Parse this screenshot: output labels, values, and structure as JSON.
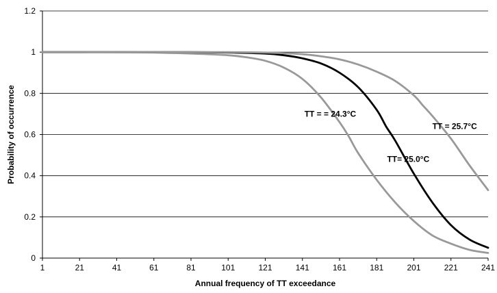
{
  "chart_data": {
    "type": "line",
    "xlabel": "Annual frequency of TT exceedance",
    "ylabel": "Probability of occurrence",
    "xlim": [
      1,
      241
    ],
    "ylim": [
      0,
      1.2
    ],
    "x_ticks": [
      1,
      21,
      41,
      61,
      81,
      101,
      121,
      141,
      161,
      181,
      201,
      221,
      241
    ],
    "y_ticks": [
      0,
      0.2,
      0.4,
      0.6,
      0.8,
      1,
      1.2
    ],
    "y_tick_labels": [
      "0",
      "0.2",
      "0.4",
      "0.6",
      "0.8",
      "1",
      "1.2"
    ],
    "grid": "horizontal",
    "legend": "none",
    "series": [
      {
        "color": "#999999",
        "x": [
          1,
          21,
          41,
          61,
          81,
          101,
          111,
          121,
          131,
          141,
          151,
          161,
          166,
          171,
          181,
          191,
          201,
          211,
          221,
          231,
          241
        ],
        "values": [
          1.0,
          1.0,
          1.0,
          0.998,
          0.993,
          0.985,
          0.975,
          0.958,
          0.925,
          0.87,
          0.78,
          0.66,
          0.59,
          0.51,
          0.38,
          0.27,
          0.18,
          0.11,
          0.07,
          0.04,
          0.025
        ]
      },
      {
        "color": "#000000",
        "x": [
          1,
          21,
          41,
          61,
          81,
          101,
          121,
          131,
          141,
          151,
          161,
          171,
          181,
          186,
          191,
          201,
          211,
          221,
          231,
          241
        ],
        "values": [
          1.0,
          1.0,
          1.0,
          1.0,
          1.0,
          0.998,
          0.993,
          0.985,
          0.97,
          0.945,
          0.9,
          0.83,
          0.72,
          0.64,
          0.57,
          0.41,
          0.27,
          0.16,
          0.09,
          0.05
        ]
      },
      {
        "color": "#999999",
        "x": [
          1,
          21,
          41,
          61,
          81,
          101,
          121,
          141,
          151,
          161,
          171,
          181,
          191,
          201,
          206,
          211,
          221,
          231,
          241
        ],
        "values": [
          1.0,
          1.0,
          1.0,
          1.0,
          1.0,
          1.0,
          0.998,
          0.99,
          0.98,
          0.965,
          0.94,
          0.905,
          0.86,
          0.79,
          0.74,
          0.69,
          0.58,
          0.45,
          0.33
        ]
      }
    ],
    "annotations": [
      {
        "text": "TT = = 24.3°C",
        "x": 156,
        "y": 0.7
      },
      {
        "text": "TT= 25.0°C",
        "x": 198,
        "y": 0.48
      },
      {
        "text": "TT = 25.7°C",
        "x": 223,
        "y": 0.64
      }
    ]
  }
}
